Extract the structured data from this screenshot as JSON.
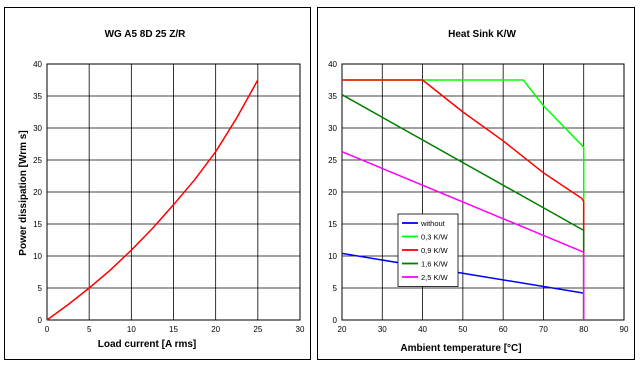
{
  "chart_data": [
    {
      "type": "line",
      "title": "WG A5 8D 25 Z/R",
      "xlabel": "Load current [A rms]",
      "ylabel": "Power dissipation  [Wrm s]",
      "xlim": [
        0,
        30
      ],
      "ylim": [
        0,
        40
      ],
      "xticks": [
        "0",
        "5",
        "10",
        "15",
        "20",
        "25",
        "30"
      ],
      "yticks": [
        "0",
        "5",
        "10",
        "15",
        "20",
        "25",
        "30",
        "35",
        "40"
      ],
      "grid": true,
      "series": [
        {
          "color": "#ff0000",
          "x": [
            0,
            2.5,
            5,
            7.5,
            10,
            12.5,
            15,
            17.5,
            20,
            22.5,
            25
          ],
          "y": [
            0,
            2.4,
            5,
            7.8,
            10.9,
            14.3,
            18,
            21.9,
            26.3,
            31.6,
            37.5
          ]
        }
      ]
    },
    {
      "type": "line",
      "title": "Heat Sink K/W",
      "xlabel": "Ambient temperature [°C]",
      "ylabel": "",
      "xlim": [
        20,
        90
      ],
      "ylim": [
        0,
        40
      ],
      "xticks": [
        "20",
        "30",
        "40",
        "50",
        "60",
        "70",
        "80",
        "90"
      ],
      "yticks": [
        "0",
        "5",
        "10",
        "15",
        "20",
        "25",
        "30",
        "35",
        "40"
      ],
      "grid": true,
      "legend": "center-left",
      "series": [
        {
          "name": "without",
          "color": "#0000ff",
          "x": [
            20,
            80,
            80
          ],
          "y": [
            10.4,
            4.2,
            0
          ]
        },
        {
          "name": "0,3 K/W",
          "color": "#00ff00",
          "x": [
            20,
            65,
            70,
            80,
            80
          ],
          "y": [
            37.5,
            37.5,
            33.5,
            27,
            0
          ]
        },
        {
          "name": "0,9 K/W",
          "color": "#ff0000",
          "x": [
            20,
            40,
            45,
            50,
            60,
            70,
            79.5,
            80,
            80
          ],
          "y": [
            37.5,
            37.5,
            35,
            32.5,
            28,
            23,
            19,
            18.5,
            0
          ]
        },
        {
          "name": "1,6 K/W",
          "color": "#008000",
          "x": [
            20,
            80,
            80
          ],
          "y": [
            35.2,
            14,
            0
          ]
        },
        {
          "name": "2,5 K/W",
          "color": "#ff00ff",
          "x": [
            20,
            80,
            80
          ],
          "y": [
            26.3,
            10.6,
            0
          ]
        }
      ]
    }
  ]
}
